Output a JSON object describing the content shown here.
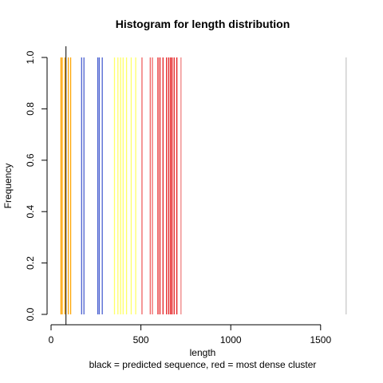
{
  "chart_data": {
    "type": "bar",
    "title": "Histogram for length distribution",
    "xlabel": "length",
    "ylabel": "Frequency",
    "subtitle": "black = predicted sequence, red = most dense cluster",
    "xlim": [
      0,
      1650
    ],
    "ylim": [
      0,
      1
    ],
    "x_ticks": [
      0,
      500,
      1000,
      1500
    ],
    "y_ticks": [
      0.0,
      0.2,
      0.4,
      0.6,
      0.8,
      1.0
    ],
    "x_tick_labels": [
      "0",
      "500",
      "1000",
      "1500"
    ],
    "y_tick_labels": [
      "0.0",
      "0.2",
      "0.4",
      "0.6",
      "0.8",
      "1.0"
    ],
    "grid": false,
    "predicted_sequence_length": 83,
    "bars": [
      {
        "x": 55,
        "value": 1,
        "color": "#ffa500"
      },
      {
        "x": 62,
        "value": 1,
        "color": "#ffa500"
      },
      {
        "x": 77,
        "value": 1,
        "color": "#ffa500"
      },
      {
        "x": 96,
        "value": 1,
        "color": "#ffa500"
      },
      {
        "x": 109,
        "value": 1,
        "color": "#ffa500"
      },
      {
        "x": 170,
        "value": 1,
        "color": "#4a60d0"
      },
      {
        "x": 183,
        "value": 1,
        "color": "#4a60d0"
      },
      {
        "x": 260,
        "value": 1,
        "color": "#4a60d0"
      },
      {
        "x": 268,
        "value": 1,
        "color": "#4a60d0"
      },
      {
        "x": 285,
        "value": 1,
        "color": "#4a60d0"
      },
      {
        "x": 353,
        "value": 1,
        "color": "#ffff66"
      },
      {
        "x": 372,
        "value": 1,
        "color": "#ffff66"
      },
      {
        "x": 387,
        "value": 1,
        "color": "#ffff66"
      },
      {
        "x": 401,
        "value": 1,
        "color": "#ffff66"
      },
      {
        "x": 420,
        "value": 1,
        "color": "#ffff66"
      },
      {
        "x": 446,
        "value": 1,
        "color": "#ffff66"
      },
      {
        "x": 471,
        "value": 1,
        "color": "#ffff66"
      },
      {
        "x": 506,
        "value": 1,
        "color": "#f06060"
      },
      {
        "x": 552,
        "value": 1,
        "color": "#f06060"
      },
      {
        "x": 564,
        "value": 1,
        "color": "#f06060"
      },
      {
        "x": 595,
        "value": 1,
        "color": "#e41a1c"
      },
      {
        "x": 606,
        "value": 1,
        "color": "#e41a1c"
      },
      {
        "x": 623,
        "value": 1,
        "color": "#e41a1c"
      },
      {
        "x": 643,
        "value": 1,
        "color": "#e41a1c"
      },
      {
        "x": 655,
        "value": 1,
        "color": "#e41a1c"
      },
      {
        "x": 665,
        "value": 1,
        "color": "#e41a1c"
      },
      {
        "x": 673,
        "value": 1,
        "color": "#e41a1c"
      },
      {
        "x": 685,
        "value": 1,
        "color": "#e41a1c"
      },
      {
        "x": 700,
        "value": 1,
        "color": "#e41a1c"
      },
      {
        "x": 723,
        "value": 1,
        "color": "#f08080"
      },
      {
        "x": 1642,
        "value": 1,
        "color": "#c8c8c8"
      }
    ]
  }
}
